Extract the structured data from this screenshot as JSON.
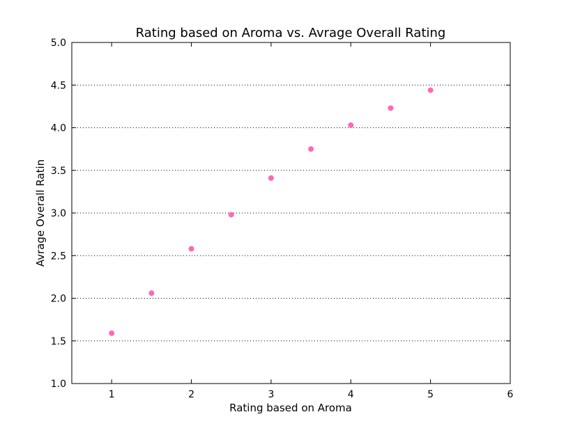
{
  "chart_data": {
    "type": "scatter",
    "title": "Rating based on Aroma vs. Avrage Overall Rating",
    "xlabel": "Rating based on Aroma",
    "ylabel": "Avrage Overall Ratin",
    "xlim": [
      0.5,
      6
    ],
    "ylim": [
      1.0,
      5.0
    ],
    "x_ticks": [
      1,
      2,
      3,
      4,
      5,
      6
    ],
    "x_tick_labels": [
      "1",
      "2",
      "3",
      "4",
      "5",
      "6"
    ],
    "y_ticks": [
      1.0,
      1.5,
      2.0,
      2.5,
      3.0,
      3.5,
      4.0,
      4.5,
      5.0
    ],
    "y_tick_labels": [
      "1.0",
      "1.5",
      "2.0",
      "2.5",
      "3.0",
      "3.5",
      "4.0",
      "4.5",
      "5.0"
    ],
    "grid": "horizontal dotted",
    "marker_color": "#ff69b4",
    "series": [
      {
        "x": [
          1.0,
          1.5,
          2.0,
          2.5,
          3.0,
          3.5,
          4.0,
          4.5,
          5.0
        ],
        "y": [
          1.59,
          2.06,
          2.58,
          2.98,
          3.41,
          3.75,
          4.03,
          4.23,
          4.44
        ]
      }
    ]
  }
}
